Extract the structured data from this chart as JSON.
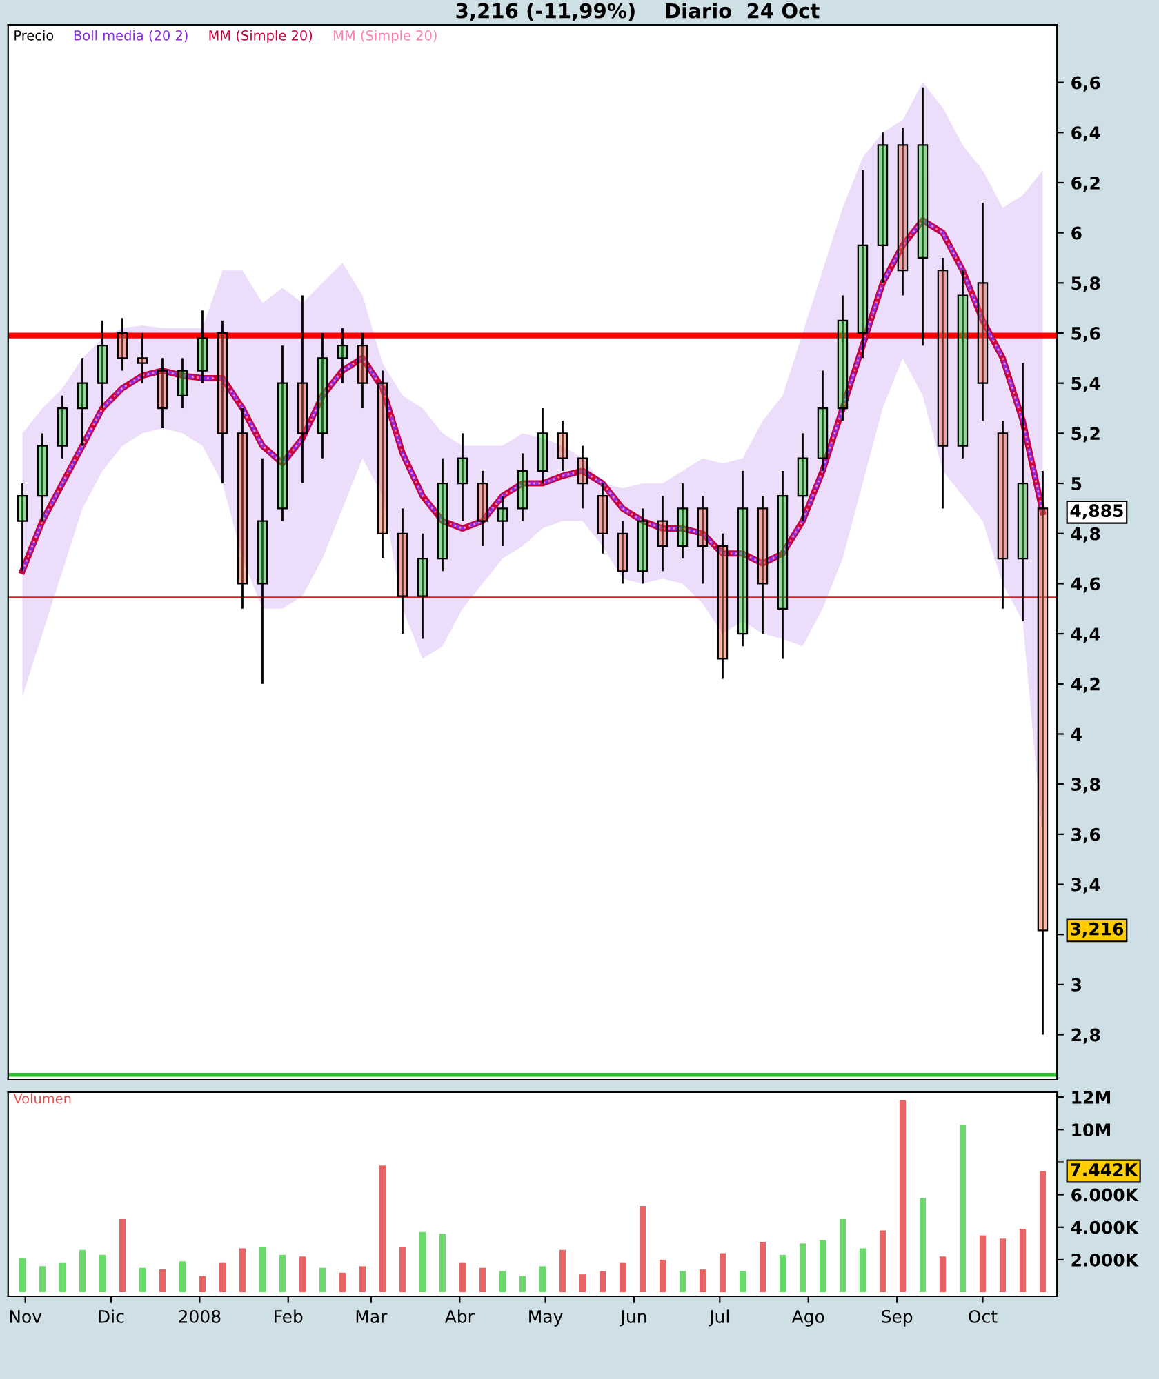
{
  "chart_data": [
    {
      "type": "candlestick",
      "title": "3,216 (-11,99%)    Diario  24 Oct",
      "x": [
        "2007-10-31",
        "2007-11-07",
        "2007-11-14",
        "2007-11-21",
        "2007-11-28",
        "2007-12-05",
        "2007-12-12",
        "2007-12-19",
        "2007-12-26",
        "2008-01-02",
        "2008-01-09",
        "2008-01-16",
        "2008-01-23",
        "2008-01-30",
        "2008-02-06",
        "2008-02-13",
        "2008-02-20",
        "2008-02-27",
        "2008-03-05",
        "2008-03-12",
        "2008-03-19",
        "2008-03-26",
        "2008-04-02",
        "2008-04-09",
        "2008-04-16",
        "2008-04-23",
        "2008-04-30",
        "2008-05-07",
        "2008-05-14",
        "2008-05-21",
        "2008-05-28",
        "2008-06-04",
        "2008-06-11",
        "2008-06-18",
        "2008-06-25",
        "2008-07-02",
        "2008-07-09",
        "2008-07-16",
        "2008-07-23",
        "2008-07-30",
        "2008-08-06",
        "2008-08-13",
        "2008-08-20",
        "2008-08-27",
        "2008-09-03",
        "2008-09-10",
        "2008-09-17",
        "2008-09-24",
        "2008-10-01",
        "2008-10-08",
        "2008-10-15",
        "2008-10-22"
      ],
      "series": [
        {
          "name": "Boll media (20 2)",
          "type": "line",
          "color": "#8a2be2",
          "line_style": "dashed",
          "values": [
            4.65,
            4.85,
            5.0,
            5.15,
            5.3,
            5.38,
            5.43,
            5.45,
            5.43,
            5.42,
            5.42,
            5.3,
            5.15,
            5.08,
            5.18,
            5.35,
            5.45,
            5.5,
            5.38,
            5.12,
            4.95,
            4.85,
            4.82,
            4.85,
            4.95,
            5.0,
            5.0,
            5.03,
            5.05,
            5.0,
            4.9,
            4.85,
            4.82,
            4.82,
            4.8,
            4.72,
            4.72,
            4.68,
            4.72,
            4.85,
            5.05,
            5.3,
            5.55,
            5.8,
            5.95,
            6.05,
            6.0,
            5.85,
            5.65,
            5.5,
            5.25,
            4.885
          ],
          "lower": [
            4.15,
            4.4,
            4.65,
            4.9,
            5.05,
            5.15,
            5.2,
            5.22,
            5.2,
            5.15,
            5.0,
            4.7,
            4.5,
            4.5,
            4.55,
            4.7,
            4.9,
            5.1,
            4.95,
            4.5,
            4.3,
            4.35,
            4.5,
            4.6,
            4.7,
            4.75,
            4.82,
            4.85,
            4.85,
            4.75,
            4.62,
            4.6,
            4.62,
            4.6,
            4.52,
            4.4,
            4.45,
            4.4,
            4.38,
            4.35,
            4.5,
            4.7,
            5.0,
            5.3,
            5.5,
            5.35,
            5.05,
            4.95,
            4.85,
            4.6,
            4.45,
            3.57
          ],
          "upper": [
            5.2,
            5.3,
            5.38,
            5.5,
            5.58,
            5.62,
            5.63,
            5.62,
            5.62,
            5.62,
            5.85,
            5.85,
            5.72,
            5.78,
            5.72,
            5.8,
            5.88,
            5.75,
            5.48,
            5.35,
            5.3,
            5.2,
            5.15,
            5.15,
            5.15,
            5.2,
            5.18,
            5.15,
            5.1,
            5.0,
            4.98,
            5.0,
            5.0,
            5.05,
            5.1,
            5.08,
            5.1,
            5.25,
            5.35,
            5.6,
            5.85,
            6.1,
            6.3,
            6.4,
            6.45,
            6.6,
            6.5,
            6.35,
            6.25,
            6.1,
            6.15,
            6.25
          ]
        },
        {
          "name": "MM (Simple 20)",
          "type": "line",
          "color": "#c8003c",
          "line_style": "solid",
          "values": [
            4.65,
            4.85,
            5.0,
            5.15,
            5.3,
            5.38,
            5.43,
            5.45,
            5.43,
            5.42,
            5.42,
            5.3,
            5.15,
            5.08,
            5.18,
            5.35,
            5.45,
            5.5,
            5.38,
            5.12,
            4.95,
            4.85,
            4.82,
            4.85,
            4.95,
            5.0,
            5.0,
            5.03,
            5.05,
            5.0,
            4.9,
            4.85,
            4.82,
            4.82,
            4.8,
            4.72,
            4.72,
            4.68,
            4.72,
            4.85,
            5.05,
            5.3,
            5.55,
            5.8,
            5.95,
            6.05,
            6.0,
            5.85,
            5.65,
            5.5,
            5.25,
            4.885
          ]
        },
        {
          "name": "MM (Simple 20)",
          "type": "line",
          "color": "#ff80b0",
          "line_style": "dotted",
          "values": [
            4.65,
            4.85,
            5.0,
            5.15,
            5.3,
            5.38,
            5.43,
            5.45,
            5.43,
            5.42,
            5.42,
            5.3,
            5.15,
            5.08,
            5.18,
            5.35,
            5.45,
            5.5,
            5.38,
            5.12,
            4.95,
            4.85,
            4.82,
            4.85,
            4.95,
            5.0,
            5.0,
            5.03,
            5.05,
            5.0,
            4.9,
            4.85,
            4.82,
            4.82,
            4.8,
            4.72,
            4.72,
            4.68,
            4.72,
            4.85,
            5.05,
            5.3,
            5.55,
            5.8,
            5.95,
            6.05,
            6.0,
            5.85,
            5.65,
            5.5,
            5.25,
            4.885
          ]
        },
        {
          "name": "Precio",
          "type": "candlestick",
          "color": "#000000",
          "ohlc": [
            [
              4.85,
              5.0,
              4.65,
              4.95
            ],
            [
              4.95,
              5.2,
              4.85,
              5.15
            ],
            [
              5.15,
              5.35,
              5.1,
              5.3
            ],
            [
              5.3,
              5.5,
              5.15,
              5.4
            ],
            [
              5.4,
              5.65,
              5.3,
              5.55
            ],
            [
              5.6,
              5.66,
              5.45,
              5.5
            ],
            [
              5.5,
              5.6,
              5.4,
              5.48
            ],
            [
              5.45,
              5.5,
              5.22,
              5.3
            ],
            [
              5.35,
              5.5,
              5.3,
              5.45
            ],
            [
              5.45,
              5.69,
              5.4,
              5.58
            ],
            [
              5.6,
              5.65,
              5.0,
              5.2
            ],
            [
              5.2,
              5.3,
              4.5,
              4.6
            ],
            [
              4.6,
              5.1,
              4.2,
              4.85
            ],
            [
              4.9,
              5.55,
              4.85,
              5.4
            ],
            [
              5.4,
              5.75,
              5.0,
              5.2
            ],
            [
              5.2,
              5.6,
              5.1,
              5.5
            ],
            [
              5.5,
              5.62,
              5.4,
              5.55
            ],
            [
              5.55,
              5.6,
              5.3,
              5.4
            ],
            [
              5.4,
              5.45,
              4.7,
              4.8
            ],
            [
              4.8,
              4.9,
              4.4,
              4.55
            ],
            [
              4.55,
              4.8,
              4.38,
              4.7
            ],
            [
              4.7,
              5.1,
              4.65,
              5.0
            ],
            [
              5.0,
              5.2,
              4.85,
              5.1
            ],
            [
              5.0,
              5.05,
              4.75,
              4.85
            ],
            [
              4.85,
              4.95,
              4.75,
              4.9
            ],
            [
              4.9,
              5.12,
              4.85,
              5.05
            ],
            [
              5.05,
              5.3,
              5.0,
              5.2
            ],
            [
              5.2,
              5.25,
              5.05,
              5.1
            ],
            [
              5.1,
              5.15,
              4.9,
              5.0
            ],
            [
              4.95,
              5.0,
              4.72,
              4.8
            ],
            [
              4.8,
              4.85,
              4.6,
              4.65
            ],
            [
              4.65,
              4.9,
              4.6,
              4.85
            ],
            [
              4.85,
              4.95,
              4.65,
              4.75
            ],
            [
              4.75,
              5.0,
              4.7,
              4.9
            ],
            [
              4.9,
              4.95,
              4.6,
              4.75
            ],
            [
              4.75,
              4.8,
              4.22,
              4.3
            ],
            [
              4.4,
              5.05,
              4.35,
              4.9
            ],
            [
              4.9,
              4.95,
              4.4,
              4.6
            ],
            [
              4.5,
              5.05,
              4.3,
              4.95
            ],
            [
              4.95,
              5.2,
              4.85,
              5.1
            ],
            [
              5.1,
              5.45,
              5.05,
              5.3
            ],
            [
              5.3,
              5.75,
              5.25,
              5.65
            ],
            [
              5.6,
              6.25,
              5.5,
              5.95
            ],
            [
              5.95,
              6.4,
              5.8,
              6.35
            ],
            [
              6.35,
              6.42,
              5.75,
              5.85
            ],
            [
              5.9,
              6.58,
              5.55,
              6.35
            ],
            [
              5.85,
              5.9,
              4.9,
              5.15
            ],
            [
              5.15,
              5.85,
              5.1,
              5.75
            ],
            [
              5.8,
              6.12,
              5.25,
              5.4
            ],
            [
              5.2,
              5.25,
              4.5,
              4.7
            ],
            [
              4.7,
              5.48,
              4.45,
              5.0
            ],
            [
              4.9,
              5.05,
              2.8,
              3.216
            ]
          ]
        }
      ],
      "ylim": [
        2.62,
        6.83
      ],
      "yticks": [
        {
          "value": 2.8,
          "label": "2,8"
        },
        {
          "value": 3.0,
          "label": "3"
        },
        {
          "value": 3.2,
          "label": null
        },
        {
          "value": 3.4,
          "label": "3,4"
        },
        {
          "value": 3.6,
          "label": "3,6"
        },
        {
          "value": 3.8,
          "label": "3,8"
        },
        {
          "value": 4.0,
          "label": "4"
        },
        {
          "value": 4.2,
          "label": "4,2"
        },
        {
          "value": 4.4,
          "label": "4,4"
        },
        {
          "value": 4.6,
          "label": "4,6"
        },
        {
          "value": 4.8,
          "label": "4,8"
        },
        {
          "value": 5.0,
          "label": "5"
        },
        {
          "value": 5.2,
          "label": "5,2"
        },
        {
          "value": 5.4,
          "label": "5,4"
        },
        {
          "value": 5.6,
          "label": "5,6"
        },
        {
          "value": 5.8,
          "label": "5,8"
        },
        {
          "value": 6.0,
          "label": "6"
        },
        {
          "value": 6.2,
          "label": "6,2"
        },
        {
          "value": 6.4,
          "label": "6,4"
        },
        {
          "value": 6.6,
          "label": "6,6"
        }
      ],
      "xlim": [
        "2007-10-26",
        "2008-10-27"
      ],
      "tick_labels": "y",
      "ref_lines": [
        {
          "axis": "y",
          "value": 5.59,
          "color": "#ff0000"
        },
        {
          "axis": "y",
          "value": 4.545,
          "color": "#e02020"
        },
        {
          "axis": "y",
          "value": 2.64,
          "color": "#2db82d"
        }
      ],
      "annotations": [
        {
          "text": "4,885",
          "x": "2008-10-22",
          "y": 4.885
        },
        {
          "text": "3,216",
          "x": "2008-10-22",
          "y": 3.216
        }
      ],
      "legend": "top left",
      "grid": false
    },
    {
      "type": "bar",
      "x": [
        "2007-10-31",
        "2007-11-07",
        "2007-11-14",
        "2007-11-21",
        "2007-11-28",
        "2007-12-05",
        "2007-12-12",
        "2007-12-19",
        "2007-12-26",
        "2008-01-02",
        "2008-01-09",
        "2008-01-16",
        "2008-01-23",
        "2008-01-30",
        "2008-02-06",
        "2008-02-13",
        "2008-02-20",
        "2008-02-27",
        "2008-03-05",
        "2008-03-12",
        "2008-03-19",
        "2008-03-26",
        "2008-04-02",
        "2008-04-09",
        "2008-04-16",
        "2008-04-23",
        "2008-04-30",
        "2008-05-07",
        "2008-05-14",
        "2008-05-21",
        "2008-05-28",
        "2008-06-04",
        "2008-06-11",
        "2008-06-18",
        "2008-06-25",
        "2008-07-02",
        "2008-07-09",
        "2008-07-16",
        "2008-07-23",
        "2008-07-30",
        "2008-08-06",
        "2008-08-13",
        "2008-08-20",
        "2008-08-27",
        "2008-09-03",
        "2008-09-10",
        "2008-09-17",
        "2008-09-24",
        "2008-10-01",
        "2008-10-08",
        "2008-10-15",
        "2008-10-22"
      ],
      "series": [
        {
          "name": "Volumen",
          "color": "#e05050",
          "values": [
            2.1,
            1.6,
            1.8,
            2.6,
            2.3,
            4.5,
            1.5,
            1.4,
            1.9,
            1.0,
            1.8,
            2.7,
            2.8,
            2.3,
            2.2,
            1.5,
            1.2,
            1.6,
            7.8,
            2.8,
            3.7,
            3.6,
            1.8,
            1.5,
            1.3,
            1.0,
            1.6,
            2.6,
            1.1,
            1.3,
            1.8,
            5.3,
            2.0,
            1.3,
            1.4,
            2.4,
            1.3,
            3.1,
            2.3,
            3.0,
            3.2,
            4.5,
            2.7,
            3.8,
            11.8,
            5.8,
            2.2,
            10.3,
            3.5,
            3.3,
            3.9,
            7.442
          ],
          "colors": [
            "#6ad86a",
            "#6ad86a",
            "#6ad86a",
            "#6ad86a",
            "#6ad86a",
            "#e86464",
            "#6ad86a",
            "#e86464",
            "#6ad86a",
            "#e86464",
            "#e86464",
            "#e86464",
            "#6ad86a",
            "#6ad86a",
            "#e86464",
            "#6ad86a",
            "#e86464",
            "#e86464",
            "#e86464",
            "#e86464",
            "#6ad86a",
            "#6ad86a",
            "#e86464",
            "#e86464",
            "#6ad86a",
            "#6ad86a",
            "#6ad86a",
            "#e86464",
            "#e86464",
            "#e86464",
            "#e86464",
            "#e86464",
            "#e86464",
            "#6ad86a",
            "#e86464",
            "#e86464",
            "#6ad86a",
            "#e86464",
            "#6ad86a",
            "#6ad86a",
            "#6ad86a",
            "#6ad86a",
            "#6ad86a",
            "#e86464",
            "#e86464",
            "#6ad86a",
            "#e86464",
            "#6ad86a",
            "#e86464",
            "#e86464",
            "#e86464",
            "#e86464"
          ]
        }
      ],
      "ylim": [
        -0.25,
        12.3
      ],
      "yticks": [
        {
          "value": 2,
          "label": "2.000K"
        },
        {
          "value": 4,
          "label": "4.000K"
        },
        {
          "value": 6,
          "label": "6.000K"
        },
        {
          "value": 8,
          "label": null
        },
        {
          "value": 10,
          "label": "10M"
        },
        {
          "value": 12,
          "label": "12M"
        }
      ],
      "xlim": [
        "2007-10-26",
        "2008-10-27"
      ],
      "xticks": [
        {
          "value": "2007-11-01",
          "label": "Nov"
        },
        {
          "value": "2007-12-01",
          "label": "Dic"
        },
        {
          "value": "2008-01-01",
          "label": "2008"
        },
        {
          "value": "2008-02-01",
          "label": "Feb"
        },
        {
          "value": "2008-03-01",
          "label": "Mar"
        },
        {
          "value": "2008-04-01",
          "label": "Abr"
        },
        {
          "value": "2008-05-01",
          "label": "May"
        },
        {
          "value": "2008-06-01",
          "label": "Jun"
        },
        {
          "value": "2008-07-01",
          "label": "Jul"
        },
        {
          "value": "2008-08-01",
          "label": "Ago"
        },
        {
          "value": "2008-09-01",
          "label": "Sep"
        },
        {
          "value": "2008-10-01",
          "label": "Oct"
        }
      ],
      "annotations": [
        {
          "text": "7.442K",
          "x": "2008-10-22",
          "y": 7.442
        }
      ],
      "legend": "top left",
      "grid": false
    }
  ]
}
